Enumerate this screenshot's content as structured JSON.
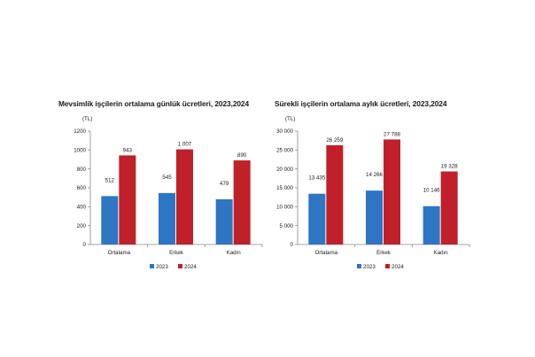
{
  "chart_data": [
    {
      "type": "bar",
      "title": "Mevsimlik işçilerin ortalama günlük ücretleri, 2023,2024",
      "ylabel": "(TL)",
      "categories": [
        "Ortalama",
        "Erkek",
        "Kadın"
      ],
      "series": [
        {
          "name": "2023",
          "color": "#2e75c4",
          "values": [
            512,
            545,
            479
          ],
          "labels": [
            "512",
            "545",
            "479"
          ]
        },
        {
          "name": "2024",
          "color": "#c0202a",
          "values": [
            943,
            1007,
            890
          ],
          "labels": [
            "943",
            "1 007",
            "890"
          ]
        }
      ],
      "ylim": [
        0,
        1200
      ],
      "yticks": [
        0,
        200,
        400,
        600,
        800,
        1000,
        1200
      ],
      "ytick_labels": [
        "0",
        "200",
        "400",
        "600",
        "800",
        "1000",
        "1200"
      ],
      "legend": "bottom",
      "grid": false
    },
    {
      "type": "bar",
      "title": "Sürekli işçilerin ortalama aylık ücretleri, 2023,2024",
      "ylabel": "(TL)",
      "categories": [
        "Ortalama",
        "Erkek",
        "Kadın"
      ],
      "series": [
        {
          "name": "2023",
          "color": "#2e75c4",
          "values": [
            13435,
            14266,
            10146
          ],
          "labels": [
            "13 435",
            "14 266",
            "10 146"
          ]
        },
        {
          "name": "2024",
          "color": "#c0202a",
          "values": [
            26259,
            27788,
            19328
          ],
          "labels": [
            "26 259",
            "27 788",
            "19 328"
          ]
        }
      ],
      "ylim": [
        0,
        30000
      ],
      "yticks": [
        0,
        5000,
        10000,
        15000,
        20000,
        25000,
        30000
      ],
      "ytick_labels": [
        "0",
        "5 000",
        "10 000",
        "15 000",
        "20 000",
        "25 000",
        "30 000"
      ],
      "legend": "bottom",
      "grid": false
    }
  ]
}
